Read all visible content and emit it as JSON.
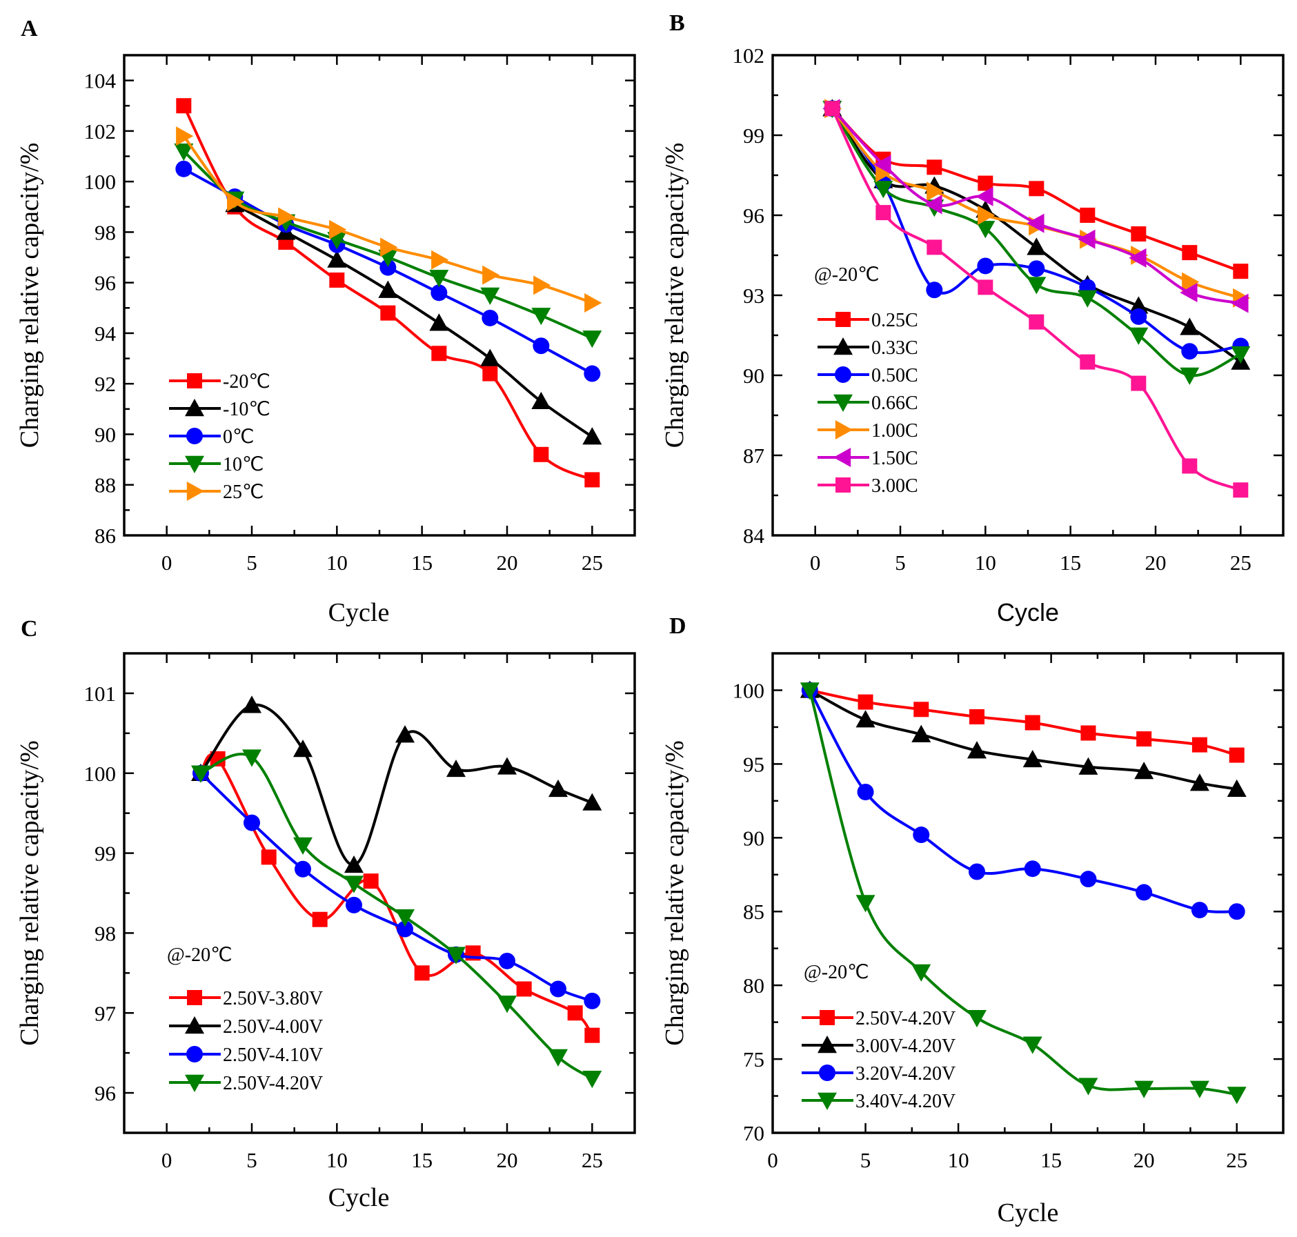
{
  "chart_data": [
    {
      "panel": "A",
      "type": "line",
      "xlabel": "Cycle",
      "ylabel": "Charging relative capacity/%",
      "xlim": [
        -2.5,
        27.5
      ],
      "ylim": [
        86,
        105
      ],
      "xticks": [
        0,
        5,
        10,
        15,
        20,
        25
      ],
      "yticks": [
        86,
        88,
        90,
        92,
        94,
        96,
        98,
        100,
        102,
        104
      ],
      "xtick_labels": [
        "0",
        "5",
        "10",
        "15",
        "20",
        "25"
      ],
      "ytick_labels": [
        "86",
        "88",
        "90",
        "92",
        "94",
        "96",
        "98",
        "100",
        "102",
        "104"
      ],
      "annotation": "",
      "legend_position": "bottom-left",
      "series": [
        {
          "name": "-20℃",
          "color": "#ff0000",
          "marker": "square",
          "x": [
            1,
            4,
            7,
            10,
            13,
            16,
            19,
            22,
            25
          ],
          "values": [
            103.0,
            99.0,
            97.6,
            96.1,
            94.8,
            93.2,
            92.4,
            89.2,
            88.2
          ]
        },
        {
          "name": "-10℃",
          "color": "#000000",
          "marker": "triangle-up",
          "x": [
            4,
            7,
            10,
            13,
            16,
            19,
            22,
            25
          ],
          "values": [
            99.1,
            98.0,
            96.9,
            95.7,
            94.4,
            93.0,
            91.3,
            89.9
          ]
        },
        {
          "name": "0℃",
          "color": "#0000ff",
          "marker": "circle",
          "x": [
            1,
            4,
            7,
            10,
            13,
            16,
            19,
            22,
            25
          ],
          "values": [
            100.5,
            99.4,
            98.3,
            97.5,
            96.6,
            95.6,
            94.6,
            93.5,
            92.4
          ]
        },
        {
          "name": "10℃",
          "color": "#008000",
          "marker": "triangle-down",
          "x": [
            1,
            4,
            7,
            10,
            13,
            16,
            19,
            22,
            25
          ],
          "values": [
            101.2,
            99.3,
            98.4,
            97.7,
            97.0,
            96.2,
            95.5,
            94.7,
            93.8
          ]
        },
        {
          "name": "25℃",
          "color": "#ff8c00",
          "marker": "triangle-right",
          "x": [
            1,
            4,
            7,
            10,
            13,
            16,
            19,
            22,
            25
          ],
          "values": [
            101.8,
            99.2,
            98.6,
            98.1,
            97.4,
            96.9,
            96.3,
            95.9,
            95.2
          ]
        }
      ]
    },
    {
      "panel": "B",
      "type": "line",
      "xlabel": "Cycle",
      "ylabel": "Charging relative capacity/%",
      "xlim": [
        -2.5,
        27.5
      ],
      "ylim": [
        84,
        102
      ],
      "xticks": [
        0,
        5,
        10,
        15,
        20,
        25
      ],
      "yticks": [
        84,
        87,
        90,
        93,
        96,
        99,
        102
      ],
      "xtick_labels": [
        "0",
        "5",
        "10",
        "15",
        "20",
        "25"
      ],
      "ytick_labels": [
        "84",
        "87",
        "90",
        "93",
        "96",
        "99",
        "102"
      ],
      "annotation": "@-20℃",
      "legend_position": "bottom-left",
      "series": [
        {
          "name": "0.25C",
          "color": "#ff0000",
          "marker": "square",
          "x": [
            1,
            4,
            7,
            10,
            13,
            16,
            19,
            22,
            25
          ],
          "values": [
            100.0,
            98.1,
            97.8,
            97.2,
            97.0,
            96.0,
            95.3,
            94.6,
            93.9
          ]
        },
        {
          "name": "0.33C",
          "color": "#000000",
          "marker": "triangle-up",
          "x": [
            1,
            4,
            7,
            10,
            13,
            16,
            19,
            22,
            25
          ],
          "values": [
            100.0,
            97.3,
            97.1,
            96.2,
            94.8,
            93.4,
            92.6,
            91.8,
            90.5
          ]
        },
        {
          "name": "0.50C",
          "color": "#0000ff",
          "marker": "circle",
          "x": [
            1,
            4,
            7,
            10,
            13,
            16,
            19,
            22,
            25
          ],
          "values": [
            100.0,
            97.2,
            93.2,
            94.1,
            94.0,
            93.3,
            92.2,
            90.9,
            91.1
          ]
        },
        {
          "name": "0.66C",
          "color": "#008000",
          "marker": "triangle-down",
          "x": [
            1,
            4,
            7,
            10,
            13,
            16,
            19,
            22,
            25
          ],
          "values": [
            100.0,
            97.0,
            96.3,
            95.5,
            93.4,
            92.9,
            91.5,
            90.0,
            90.8
          ]
        },
        {
          "name": "1.00C",
          "color": "#ff8c00",
          "marker": "triangle-right",
          "x": [
            1,
            4,
            7,
            10,
            13,
            16,
            19,
            22,
            25
          ],
          "values": [
            100.0,
            97.6,
            96.9,
            96.0,
            95.6,
            95.1,
            94.5,
            93.5,
            92.9
          ]
        },
        {
          "name": "1.50C",
          "color": "#cc00cc",
          "marker": "triangle-left",
          "x": [
            1,
            4,
            7,
            10,
            13,
            16,
            19,
            22,
            25
          ],
          "values": [
            100.0,
            97.9,
            96.4,
            96.7,
            95.7,
            95.1,
            94.4,
            93.1,
            92.7
          ]
        },
        {
          "name": "3.00C",
          "color": "#ff1493",
          "marker": "square",
          "x": [
            1,
            4,
            7,
            10,
            13,
            16,
            19,
            22,
            25
          ],
          "values": [
            100.0,
            96.1,
            94.8,
            93.3,
            92.0,
            90.5,
            89.7,
            86.6,
            85.7
          ]
        }
      ]
    },
    {
      "panel": "C",
      "type": "line",
      "xlabel": "Cycle",
      "ylabel": "Charging relative capacity/%",
      "xlim": [
        -2.5,
        27.5
      ],
      "ylim": [
        95.5,
        101.5
      ],
      "xticks": [
        0,
        5,
        10,
        15,
        20,
        25
      ],
      "yticks": [
        96,
        97,
        98,
        99,
        100,
        101
      ],
      "xtick_labels": [
        "0",
        "5",
        "10",
        "15",
        "20",
        "25"
      ],
      "ytick_labels": [
        "96",
        "97",
        "98",
        "99",
        "100",
        "101"
      ],
      "annotation": "@-20℃",
      "legend_position": "bottom-left",
      "series": [
        {
          "name": "2.50V-3.80V",
          "color": "#ff0000",
          "marker": "square",
          "x": [
            2,
            3,
            6,
            9,
            12,
            15,
            18,
            21,
            24,
            25
          ],
          "values": [
            100.0,
            100.18,
            98.95,
            98.17,
            98.65,
            97.5,
            97.75,
            97.3,
            97.0,
            96.72
          ]
        },
        {
          "name": "2.50V-4.00V",
          "color": "#000000",
          "marker": "triangle-up",
          "x": [
            2,
            5,
            8,
            11,
            14,
            17,
            20,
            23,
            25
          ],
          "values": [
            100.0,
            100.85,
            100.3,
            98.85,
            100.48,
            100.05,
            100.08,
            99.8,
            99.63
          ]
        },
        {
          "name": "2.50V-4.10V",
          "color": "#0000ff",
          "marker": "circle",
          "x": [
            2,
            5,
            8,
            11,
            14,
            17,
            20,
            23,
            25
          ],
          "values": [
            100.0,
            99.38,
            98.8,
            98.35,
            98.05,
            97.73,
            97.65,
            97.3,
            97.15
          ]
        },
        {
          "name": "2.50V-4.20V",
          "color": "#008000",
          "marker": "triangle-down",
          "x": [
            2,
            5,
            8,
            11,
            14,
            17,
            20,
            23,
            25
          ],
          "values": [
            100.0,
            100.2,
            99.1,
            98.62,
            98.2,
            97.73,
            97.12,
            96.45,
            96.18
          ]
        }
      ]
    },
    {
      "panel": "D",
      "type": "line",
      "xlabel": "Cycle",
      "ylabel": "Charging relative capacity/%",
      "xlim": [
        0,
        27.5
      ],
      "ylim": [
        70,
        102.5
      ],
      "xticks": [
        0,
        5,
        10,
        15,
        20,
        25
      ],
      "yticks": [
        70,
        75,
        80,
        85,
        90,
        95,
        100
      ],
      "xtick_labels": [
        "0",
        "5",
        "10",
        "15",
        "20",
        "25"
      ],
      "ytick_labels": [
        "70",
        "75",
        "80",
        "85",
        "90",
        "95",
        "100"
      ],
      "annotation": "@-20℃",
      "legend_position": "bottom-left",
      "series": [
        {
          "name": "2.50V-4.20V",
          "color": "#ff0000",
          "marker": "square",
          "x": [
            2,
            5,
            8,
            11,
            14,
            17,
            20,
            23,
            25
          ],
          "values": [
            100.0,
            99.2,
            98.7,
            98.2,
            97.8,
            97.1,
            96.7,
            96.3,
            95.6
          ]
        },
        {
          "name": "3.00V-4.20V",
          "color": "#000000",
          "marker": "triangle-up",
          "x": [
            2,
            5,
            8,
            11,
            14,
            17,
            20,
            23,
            25
          ],
          "values": [
            100.0,
            98.0,
            97.0,
            95.9,
            95.3,
            94.8,
            94.5,
            93.7,
            93.3
          ]
        },
        {
          "name": "3.20V-4.20V",
          "color": "#0000ff",
          "marker": "circle",
          "x": [
            2,
            5,
            8,
            11,
            14,
            17,
            20,
            23,
            25
          ],
          "values": [
            100.0,
            93.1,
            90.2,
            87.7,
            87.9,
            87.2,
            86.3,
            85.1,
            85.0
          ]
        },
        {
          "name": "3.40V-4.20V",
          "color": "#008000",
          "marker": "triangle-down",
          "x": [
            2,
            5,
            8,
            11,
            14,
            17,
            20,
            23,
            25
          ],
          "values": [
            100.0,
            85.6,
            80.9,
            77.8,
            76.0,
            73.2,
            73.0,
            73.0,
            72.6
          ]
        }
      ]
    }
  ]
}
